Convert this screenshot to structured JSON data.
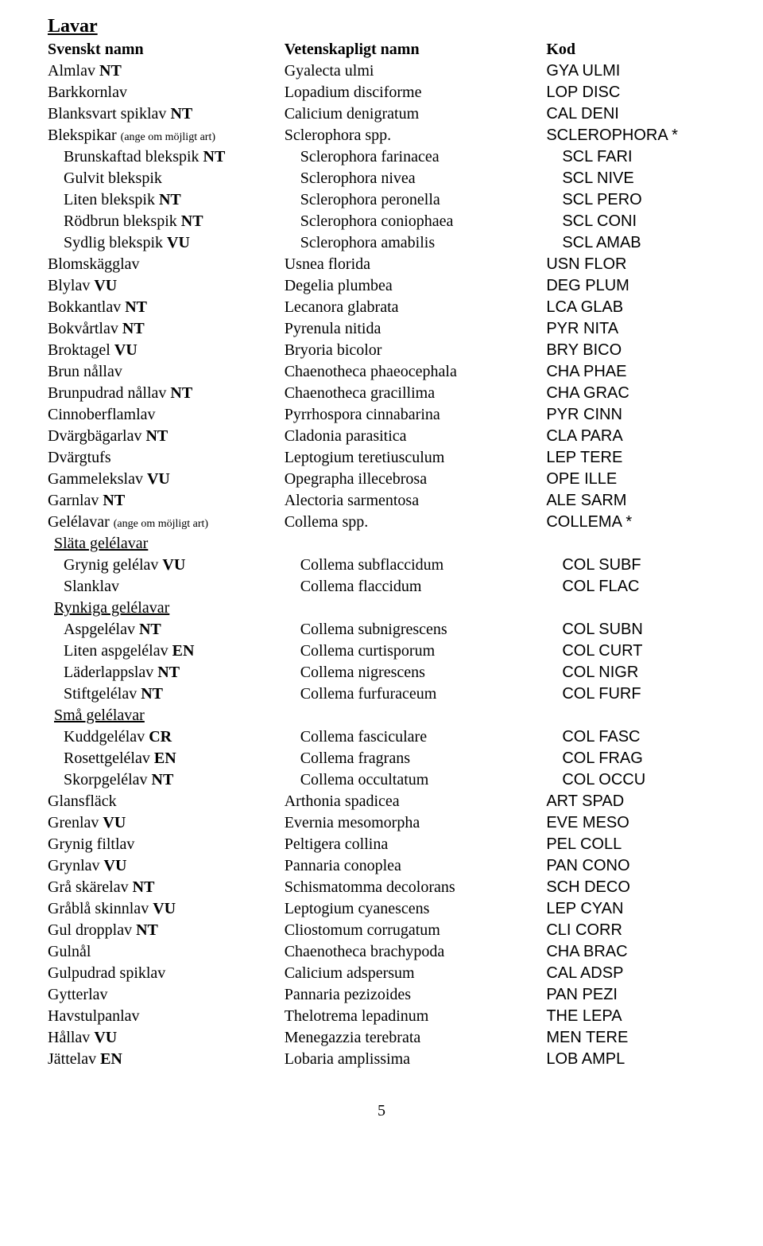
{
  "title": "Lavar",
  "header": {
    "swedish": "Svenskt namn",
    "scientific": "Vetenskapligt namn",
    "code": "Kod"
  },
  "page_number": "5",
  "rows": [
    {
      "i": 0,
      "sv_pre": "Almlav ",
      "sv_bold": "NT",
      "sci": "Gyalecta ulmi",
      "code": "GYA ULMI"
    },
    {
      "i": 0,
      "sv_pre": "Barkkornlav",
      "sv_bold": "",
      "sci": "Lopadium disciforme",
      "code": "LOP DISC"
    },
    {
      "i": 0,
      "sv_pre": "Blanksvart spiklav  ",
      "sv_bold": "NT",
      "sci": "Calicium denigratum",
      "code": "CAL DENI"
    },
    {
      "i": 0,
      "sv_pre": "Blekspikar ",
      "sv_small": "(ange om möjligt art)",
      "sv_bold": "",
      "sci": "Sclerophora spp.",
      "code": "SCLEROPHORA *"
    },
    {
      "i": 1,
      "sv_pre": "Brunskaftad blekspik  ",
      "sv_bold": "NT",
      "sci_i": 1,
      "sci": "Sclerophora farinacea",
      "code_i": 1,
      "code": "SCL FARI"
    },
    {
      "i": 1,
      "sv_pre": "Gulvit blekspik",
      "sv_bold": "",
      "sci_i": 1,
      "sci": "Sclerophora nivea",
      "code_i": 1,
      "code": "SCL NIVE"
    },
    {
      "i": 1,
      "sv_pre": "Liten blekspik ",
      "sv_bold": "NT",
      "sci_i": 1,
      "sci": "Sclerophora peronella",
      "code_i": 1,
      "code": "SCL PERO"
    },
    {
      "i": 1,
      "sv_pre": "Rödbrun blekspik ",
      "sv_bold": "NT",
      "sci_i": 1,
      "sci": "Sclerophora coniophaea",
      "code_i": 1,
      "code": "SCL CONI"
    },
    {
      "i": 1,
      "sv_pre": "Sydlig blekspik ",
      "sv_bold": "VU",
      "sci_i": 1,
      "sci": "Sclerophora amabilis",
      "code_i": 1,
      "code": "SCL AMAB"
    },
    {
      "i": 0,
      "sv_pre": "Blomskägglav",
      "sv_bold": "",
      "sci": "Usnea florida",
      "code": "USN FLOR"
    },
    {
      "i": 0,
      "sv_pre": "Blylav ",
      "sv_bold": "VU",
      "sci": "Degelia plumbea",
      "code": "DEG PLUM"
    },
    {
      "i": 0,
      "sv_pre": "Bokkantlav ",
      "sv_bold": "NT",
      "sci": "Lecanora glabrata",
      "code": "LCA GLAB"
    },
    {
      "i": 0,
      "sv_pre": "Bokvårtlav ",
      "sv_bold": "NT",
      "sci": "Pyrenula nitida",
      "code": "PYR NITA"
    },
    {
      "i": 0,
      "sv_pre": "Broktagel ",
      "sv_bold": "VU",
      "sci": "Bryoria bicolor",
      "code": "BRY BICO"
    },
    {
      "i": 0,
      "sv_pre": "Brun nållav",
      "sv_bold": "",
      "sci": "Chaenotheca phaeocephala",
      "code": "CHA PHAE"
    },
    {
      "i": 0,
      "sv_pre": "Brunpudrad nållav ",
      "sv_bold": "NT",
      "sci": "Chaenotheca gracillima",
      "code": "CHA GRAC"
    },
    {
      "i": 0,
      "sv_pre": "Cinnoberflamlav",
      "sv_bold": "",
      "sci": "Pyrrhospora cinnabarina",
      "code": "PYR CINN"
    },
    {
      "i": 0,
      "sv_pre": "Dvärgbägarlav ",
      "sv_bold": "NT",
      "sci": "Cladonia parasitica",
      "code": "CLA PARA"
    },
    {
      "i": 0,
      "sv_pre": "Dvärgtufs",
      "sv_bold": "",
      "sci": "Leptogium teretiusculum",
      "code": "LEP TERE"
    },
    {
      "i": 0,
      "sv_pre": "Gammelekslav ",
      "sv_bold": "VU",
      "sci": "Opegrapha illecebrosa",
      "code": "OPE ILLE"
    },
    {
      "i": 0,
      "sv_pre": "Garnlav  ",
      "sv_bold": "NT",
      "sci": "Alectoria sarmentosa",
      "code": "ALE SARM"
    },
    {
      "i": 0,
      "sv_pre": "Gelélavar ",
      "sv_small": "(ange om möjligt art)",
      "sv_bold": "",
      "sci": "Collema spp.",
      "code": "COLLEMA *"
    },
    {
      "i": "h",
      "sv_pre": "Släta gelélavar",
      "sv_bold": "",
      "sci": "",
      "code": ""
    },
    {
      "i": 1,
      "sv_pre": "Grynig gelélav ",
      "sv_bold": "VU",
      "sci_i": 1,
      "sci": "Collema subflaccidum",
      "code_i": 1,
      "code": "COL SUBF"
    },
    {
      "i": 1,
      "sv_pre": "Slanklav",
      "sv_bold": "",
      "sci_i": 1,
      "sci": "Collema flaccidum",
      "code_i": 1,
      "code": "COL FLAC"
    },
    {
      "i": "h",
      "sv_pre": "Rynkiga gelélavar",
      "sv_bold": "",
      "sci": "",
      "code": ""
    },
    {
      "i": 1,
      "sv_pre": "Aspgelélav ",
      "sv_bold": "NT",
      "sci_i": 1,
      "sci": "Collema subnigrescens",
      "code_i": 1,
      "code": "COL SUBN"
    },
    {
      "i": 1,
      "sv_pre": "Liten aspgelélav ",
      "sv_bold": "EN",
      "sci_i": 1,
      "sci": "Collema curtisporum",
      "code_i": 1,
      "code": "COL CURT"
    },
    {
      "i": 1,
      "sv_pre": "Läderlappslav ",
      "sv_bold": "NT",
      "sci_i": 1,
      "sci": "Collema nigrescens",
      "code_i": 1,
      "code": "COL NIGR"
    },
    {
      "i": 1,
      "sv_pre": "Stiftgelélav ",
      "sv_bold": "NT",
      "sci_i": 1,
      "sci": "Collema furfuraceum",
      "code_i": 1,
      "code": "COL FURF"
    },
    {
      "i": "h",
      "sv_pre": "Små gelélavar",
      "sv_bold": "",
      "sci": "",
      "code": ""
    },
    {
      "i": 1,
      "sv_pre": "Kuddgelélav ",
      "sv_bold": "CR",
      "sci_i": 1,
      "sci": "Collema fasciculare",
      "code_i": 1,
      "code": "COL FASC"
    },
    {
      "i": 1,
      "sv_pre": "Rosettgelélav ",
      "sv_bold": "EN",
      "sci_i": 1,
      "sci": "Collema fragrans",
      "code_i": 1,
      "code": "COL FRAG"
    },
    {
      "i": 1,
      "sv_pre": "Skorpgelélav ",
      "sv_bold": "NT",
      "sci_i": 1,
      "sci": "Collema occultatum",
      "code_i": 1,
      "code": "COL OCCU"
    },
    {
      "i": 0,
      "sv_pre": "Glansfläck",
      "sv_bold": "",
      "sci": "Arthonia spadicea",
      "code": "ART SPAD"
    },
    {
      "i": 0,
      "sv_pre": "Grenlav ",
      "sv_bold": "VU",
      "sci": "Evernia mesomorpha",
      "code": "EVE MESO"
    },
    {
      "i": 0,
      "sv_pre": "Grynig filtlav",
      "sv_bold": "",
      "sci": "Peltigera collina",
      "code": "PEL COLL"
    },
    {
      "i": 0,
      "sv_pre": "Grynlav ",
      "sv_bold": "VU",
      "sci": "Pannaria conoplea",
      "code": "PAN CONO"
    },
    {
      "i": 0,
      "sv_pre": "Grå skärelav ",
      "sv_bold": "NT",
      "sci": "Schismatomma decolorans",
      "code": "SCH DECO"
    },
    {
      "i": 0,
      "sv_pre": "Gråblå skinnlav ",
      "sv_bold": "VU",
      "sci": "Leptogium cyanescens",
      "code": "LEP CYAN"
    },
    {
      "i": 0,
      "sv_pre": "Gul dropplav ",
      "sv_bold": "NT",
      "sci": "Cliostomum corrugatum",
      "code": "CLI CORR"
    },
    {
      "i": 0,
      "sv_pre": "Gulnål",
      "sv_bold": "",
      "sci": "Chaenotheca brachypoda",
      "code": "CHA BRAC"
    },
    {
      "i": 0,
      "sv_pre": "Gulpudrad spiklav",
      "sv_bold": "",
      "sci": "Calicium adspersum",
      "code": "CAL ADSP"
    },
    {
      "i": 0,
      "sv_pre": "Gytterlav",
      "sv_bold": "",
      "sci": "Pannaria pezizoides",
      "code": "PAN PEZI"
    },
    {
      "i": 0,
      "sv_pre": "Havstulpanlav",
      "sv_bold": "",
      "sci": "Thelotrema lepadinum",
      "code": "THE LEPA"
    },
    {
      "i": 0,
      "sv_pre": "Hållav ",
      "sv_bold": "VU",
      "sci": "Menegazzia terebrata",
      "code": "MEN TERE"
    },
    {
      "i": 0,
      "sv_pre": "Jättelav ",
      "sv_bold": "EN",
      "sci": "Lobaria amplissima",
      "code": "LOB AMPL"
    }
  ]
}
